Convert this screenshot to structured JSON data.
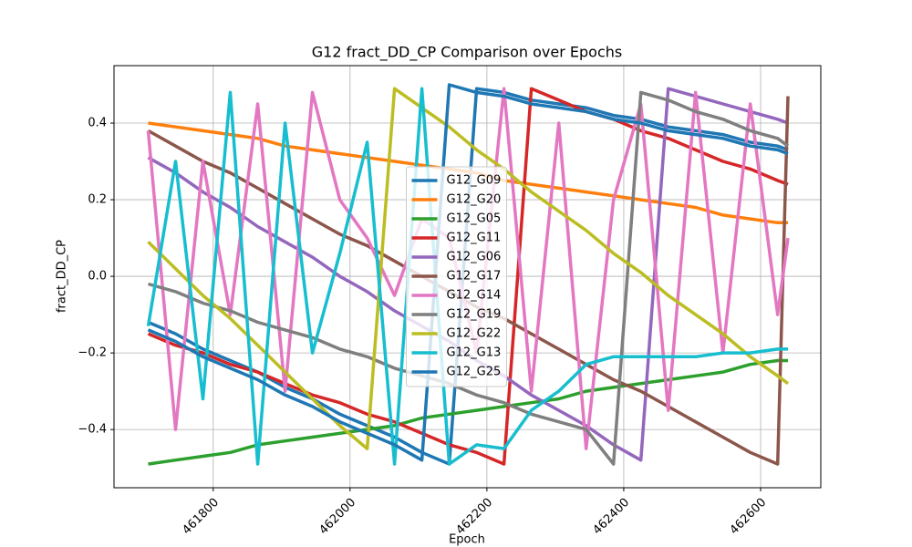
{
  "chart_data": {
    "type": "line",
    "title": "G12 fract_DD_CP Comparison over Epochs",
    "xlabel": "Epoch",
    "ylabel": "fract_DD_CP",
    "x": [
      461705,
      461745,
      461785,
      461825,
      461865,
      461905,
      461945,
      461985,
      462025,
      462065,
      462105,
      462145,
      462185,
      462225,
      462265,
      462305,
      462345,
      462385,
      462425,
      462465,
      462505,
      462545,
      462585,
      462625,
      462640
    ],
    "series": [
      {
        "name": "G12_G09",
        "color": "#1f77b4",
        "values": [
          -0.12,
          -0.15,
          -0.19,
          -0.22,
          -0.25,
          -0.29,
          -0.32,
          -0.36,
          -0.39,
          -0.42,
          -0.46,
          -0.49,
          0.49,
          0.48,
          0.46,
          0.45,
          0.44,
          0.42,
          0.41,
          0.39,
          0.38,
          0.37,
          0.35,
          0.34,
          0.33
        ]
      },
      {
        "name": "G12_G20",
        "color": "#ff7f0e",
        "values": [
          0.4,
          0.39,
          0.38,
          0.37,
          0.36,
          0.34,
          0.33,
          0.32,
          0.31,
          0.3,
          0.29,
          0.28,
          0.27,
          0.25,
          0.24,
          0.23,
          0.22,
          0.21,
          0.2,
          0.19,
          0.18,
          0.16,
          0.15,
          0.14,
          0.14
        ]
      },
      {
        "name": "G12_G05",
        "color": "#2ca02c",
        "values": [
          -0.49,
          -0.48,
          -0.47,
          -0.46,
          -0.44,
          -0.43,
          -0.42,
          -0.41,
          -0.4,
          -0.39,
          -0.37,
          -0.36,
          -0.35,
          -0.34,
          -0.33,
          -0.32,
          -0.3,
          -0.29,
          -0.28,
          -0.27,
          -0.26,
          -0.25,
          -0.23,
          -0.22,
          -0.22
        ]
      },
      {
        "name": "G12_G11",
        "color": "#d62728",
        "values": [
          -0.15,
          -0.18,
          -0.2,
          -0.23,
          -0.25,
          -0.28,
          -0.31,
          -0.33,
          -0.36,
          -0.38,
          -0.41,
          -0.44,
          -0.46,
          -0.49,
          0.49,
          0.46,
          0.43,
          0.41,
          0.38,
          0.36,
          0.33,
          0.3,
          0.28,
          0.25,
          0.24
        ]
      },
      {
        "name": "G12_G06",
        "color": "#9467bd",
        "values": [
          0.31,
          0.27,
          0.22,
          0.18,
          0.13,
          0.09,
          0.05,
          0.0,
          -0.04,
          -0.09,
          -0.13,
          -0.17,
          -0.22,
          -0.26,
          -0.31,
          -0.35,
          -0.39,
          -0.44,
          -0.48,
          0.49,
          0.47,
          0.45,
          0.43,
          0.41,
          0.4
        ]
      },
      {
        "name": "G12_G17",
        "color": "#8c564b",
        "values": [
          0.38,
          0.34,
          0.3,
          0.27,
          0.23,
          0.19,
          0.15,
          0.11,
          0.08,
          0.04,
          0.0,
          -0.04,
          -0.08,
          -0.11,
          -0.15,
          -0.19,
          -0.23,
          -0.27,
          -0.3,
          -0.34,
          -0.38,
          -0.42,
          -0.46,
          -0.49,
          0.47
        ]
      },
      {
        "name": "G12_G14",
        "color": "#e377c2",
        "values": [
          0.38,
          -0.4,
          0.3,
          -0.1,
          0.45,
          -0.3,
          0.48,
          0.2,
          0.1,
          -0.05,
          0.15,
          0.1,
          -0.2,
          0.49,
          -0.3,
          0.4,
          -0.45,
          0.2,
          0.45,
          -0.35,
          0.48,
          -0.2,
          0.45,
          -0.1,
          0.1
        ]
      },
      {
        "name": "G12_G19",
        "color": "#7f7f7f",
        "values": [
          -0.02,
          -0.04,
          -0.07,
          -0.09,
          -0.12,
          -0.14,
          -0.16,
          -0.19,
          -0.21,
          -0.24,
          -0.26,
          -0.28,
          -0.31,
          -0.33,
          -0.36,
          -0.38,
          -0.4,
          -0.49,
          0.48,
          0.46,
          0.43,
          0.41,
          0.38,
          0.36,
          0.34
        ]
      },
      {
        "name": "G12_G22",
        "color": "#bcbd22",
        "values": [
          0.09,
          0.02,
          -0.05,
          -0.11,
          -0.18,
          -0.25,
          -0.32,
          -0.39,
          -0.45,
          0.49,
          0.44,
          0.39,
          0.33,
          0.28,
          0.22,
          0.17,
          0.12,
          0.06,
          0.01,
          -0.05,
          -0.1,
          -0.15,
          -0.21,
          -0.26,
          -0.28
        ]
      },
      {
        "name": "G12_G13",
        "color": "#17becf",
        "values": [
          -0.13,
          0.3,
          -0.32,
          0.48,
          -0.49,
          0.4,
          -0.2,
          0.06,
          0.35,
          -0.49,
          0.49,
          -0.49,
          -0.44,
          -0.45,
          -0.35,
          -0.3,
          -0.23,
          -0.21,
          -0.21,
          -0.21,
          -0.21,
          -0.2,
          -0.2,
          -0.19,
          -0.19
        ]
      },
      {
        "name": "G12_G25",
        "color": "#1f77b4",
        "values": [
          -0.14,
          -0.17,
          -0.21,
          -0.24,
          -0.27,
          -0.31,
          -0.34,
          -0.38,
          -0.41,
          -0.44,
          -0.48,
          0.5,
          0.48,
          0.47,
          0.45,
          0.44,
          0.43,
          0.41,
          0.4,
          0.38,
          0.37,
          0.36,
          0.34,
          0.33,
          0.32
        ]
      }
    ],
    "xlim": [
      461655,
      462688
    ],
    "ylim": [
      -0.552,
      0.55
    ],
    "xticks": [
      461800,
      462000,
      462200,
      462400,
      462600
    ],
    "yticks": [
      {
        "value": -0.4,
        "label": "−0.4"
      },
      {
        "value": -0.2,
        "label": "−0.2"
      },
      {
        "value": 0,
        "label": "0.0"
      },
      0.2,
      0.4
    ],
    "grid": true,
    "legend": "center"
  }
}
